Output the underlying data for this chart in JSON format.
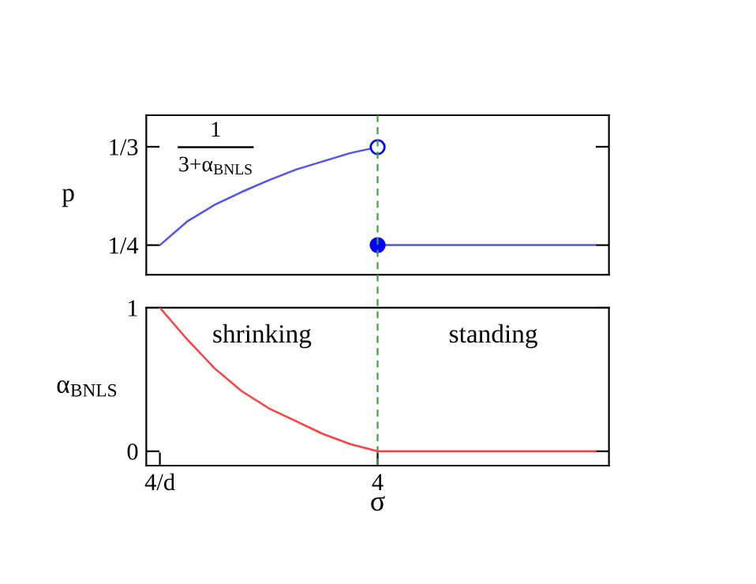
{
  "chart_data": [
    {
      "type": "line",
      "ylabel": "p",
      "ylim": [
        0.225,
        0.36
      ],
      "tick_labels": "y",
      "categories": [
        null,
        null,
        null,
        null,
        null,
        null,
        null,
        null,
        null,
        null,
        null,
        null,
        null,
        null,
        null,
        null,
        null
      ],
      "yticks": [
        {
          "value": 0.25,
          "label": "1/4"
        },
        {
          "value": 0.3333,
          "label": "1/3"
        }
      ],
      "annotations": [
        "1",
        "3+α$_{BNLS}$"
      ],
      "series": [
        {
          "color": "#5050ff",
          "values": [
            0.25,
            0.27,
            0.284,
            0.295,
            0.305,
            0.314,
            0.321,
            0.328,
            0.333,
            null,
            null,
            null,
            null,
            null,
            null,
            null,
            null
          ]
        },
        {
          "color": "#5050ff",
          "values": [
            null,
            null,
            null,
            null,
            null,
            null,
            null,
            null,
            0.25,
            0.25,
            0.25,
            0.25,
            0.25,
            0.25,
            0.25,
            0.25,
            0.25
          ]
        },
        {
          "type": "scatter",
          "color": "#0000ff",
          "marker": "circle",
          "values": [
            null,
            null,
            null,
            null,
            null,
            null,
            null,
            null,
            0.333,
            null,
            null,
            null,
            null,
            null,
            null,
            null,
            null
          ]
        },
        {
          "type": "scatter",
          "color": "#0000ff",
          "marker": "circle",
          "values": [
            null,
            null,
            null,
            null,
            null,
            null,
            null,
            null,
            0.25,
            null,
            null,
            null,
            null,
            null,
            null,
            null,
            null
          ]
        }
      ]
    },
    {
      "type": "line",
      "ylabel": "α$_{BNLS}$",
      "xlabel": "σ",
      "ylim": [
        -0.1,
        1
      ],
      "yticks": [
        0,
        1
      ],
      "categories": [
        "4/d",
        null,
        null,
        null,
        null,
        null,
        null,
        null,
        "4",
        null,
        null,
        null,
        null,
        null,
        null,
        null,
        null
      ],
      "annotations": [
        "shrinking",
        "standing"
      ],
      "ref_lines": [
        {
          "axis": "x",
          "value": "4",
          "label": null,
          "color": "#40a040",
          "line_style": "dashed"
        }
      ],
      "series": [
        {
          "color": "#ff4040",
          "values": [
            1,
            0.78,
            0.58,
            0.42,
            0.3,
            0.21,
            0.12,
            0.05,
            0,
            0,
            0,
            0,
            0,
            0,
            0,
            0,
            0
          ]
        }
      ]
    }
  ]
}
